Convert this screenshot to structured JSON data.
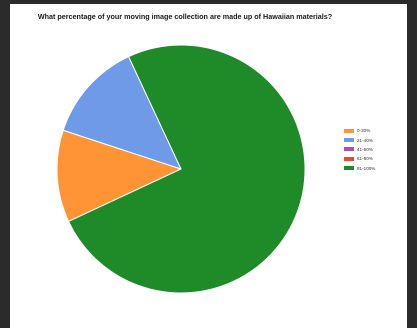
{
  "chart_data": {
    "type": "pie",
    "title": "What percentage of your moving image collection are made up of Hawaiian materials?",
    "categories": [
      "0-20%",
      "21-40%",
      "41-60%",
      "61-80%",
      "81-100%"
    ],
    "values": [
      12,
      13,
      0,
      0,
      75
    ],
    "colors": [
      "#ff9436",
      "#6f9ae8",
      "#a64dc7",
      "#e34b2f",
      "#1e8a28"
    ],
    "legend_position": "right",
    "start_angle_deg": 155,
    "direction": "counterclockwise"
  }
}
